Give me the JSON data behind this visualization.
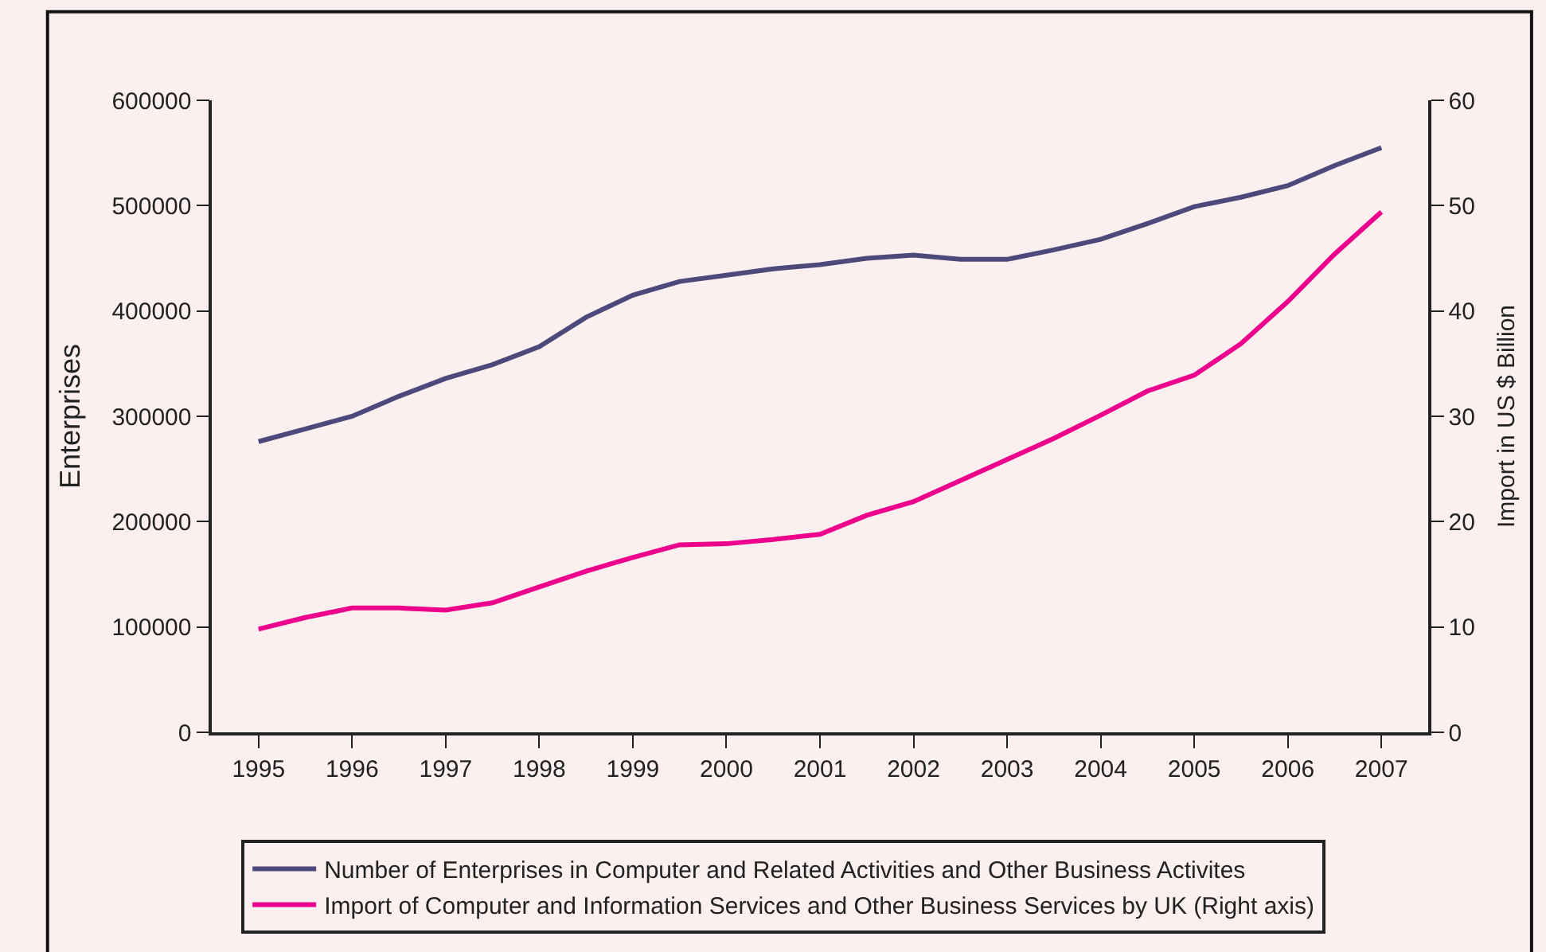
{
  "chart_data": {
    "type": "line",
    "ylabel": "Enterprises",
    "y2label": "Import in US $ Billion",
    "x": [
      1995,
      1995.5,
      1996,
      1996.5,
      1997,
      1997.5,
      1998,
      1998.5,
      1999,
      1999.5,
      2000,
      2000.5,
      2001,
      2001.5,
      2002,
      2002.5,
      2003,
      2003.5,
      2004,
      2004.5,
      2005,
      2005.5,
      2006,
      2006.5,
      2007
    ],
    "xlim": [
      1994.5,
      2007.5
    ],
    "xticks": [
      1995,
      1996,
      1997,
      1998,
      1999,
      2000,
      2001,
      2002,
      2003,
      2004,
      2005,
      2006,
      2007
    ],
    "ylim": [
      0,
      600000
    ],
    "yticks": [
      0,
      100000,
      200000,
      300000,
      400000,
      500000,
      600000
    ],
    "y2lim": [
      0,
      60
    ],
    "y2ticks": [
      0,
      10,
      20,
      30,
      40,
      50,
      60
    ],
    "series": [
      {
        "name": "Number of Enterprises in Computer and Related Activities and Other Business Activites",
        "color": "#4b4a7a",
        "values": [
          276000,
          288000,
          300000,
          319000,
          336000,
          349000,
          366000,
          394000,
          415000,
          428000,
          434000,
          440000,
          444000,
          450000,
          453000,
          449000,
          449000,
          458000,
          468000,
          483000,
          499000,
          508000,
          519000,
          538000,
          555000
        ]
      },
      {
        "name": "Import of Computer and Information Services and Other Business Services by UK (Right axis)",
        "color": "#ec008c",
        "axis": "y2",
        "values": [
          9.8,
          10.9,
          11.8,
          11.8,
          11.6,
          12.3,
          13.8,
          15.3,
          16.6,
          17.8,
          17.9,
          18.3,
          18.8,
          20.6,
          21.9,
          23.9,
          25.9,
          27.9,
          30.1,
          32.4,
          33.9,
          36.9,
          40.9,
          45.4,
          49.4
        ]
      }
    ],
    "legend": "bottom",
    "grid": false,
    "marker": "none",
    "line_style": "solid"
  }
}
